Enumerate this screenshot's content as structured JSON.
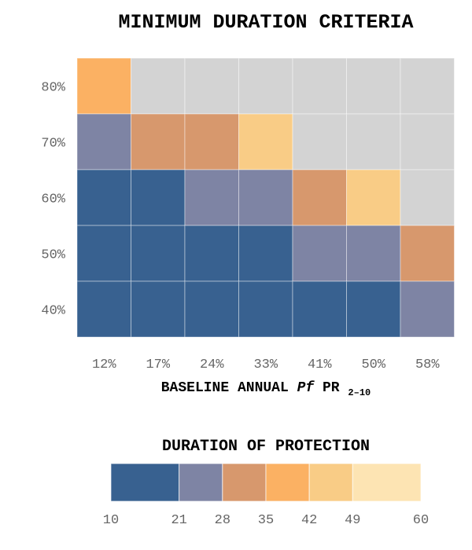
{
  "chart_data": {
    "type": "heatmap",
    "title": "MINIMUM DURATION CRITERIA",
    "xlabel": {
      "main": "BASELINE ANNUAL ",
      "italic": "Pf",
      "suffix": "PR",
      "subscript": "2–10"
    },
    "x_categories": [
      "12%",
      "17%",
      "24%",
      "33%",
      "41%",
      "50%",
      "58%"
    ],
    "y_categories": [
      "80%",
      "70%",
      "60%",
      "50%",
      "40%"
    ],
    "cell_values": [
      [
        42,
        null,
        null,
        null,
        null,
        null,
        null
      ],
      [
        21,
        35,
        35,
        49,
        null,
        null,
        null
      ],
      [
        10,
        10,
        21,
        21,
        35,
        49,
        null
      ],
      [
        10,
        10,
        10,
        10,
        21,
        21,
        35
      ],
      [
        10,
        10,
        10,
        10,
        10,
        10,
        21
      ]
    ],
    "legend": {
      "title": "DURATION OF PROTECTION",
      "ticks": [
        10,
        21,
        28,
        35,
        42,
        49,
        60
      ],
      "colors": [
        "#386190",
        "#7e84a4",
        "#d7986d",
        "#fbb163",
        "#f9cc86",
        "#fde4b3"
      ]
    },
    "colors": {
      "missing": "#d3d3d3",
      "10": "#386190",
      "21": "#7e84a4",
      "35": "#d7986d",
      "42": "#fbb163",
      "49": "#f9cc86"
    }
  }
}
